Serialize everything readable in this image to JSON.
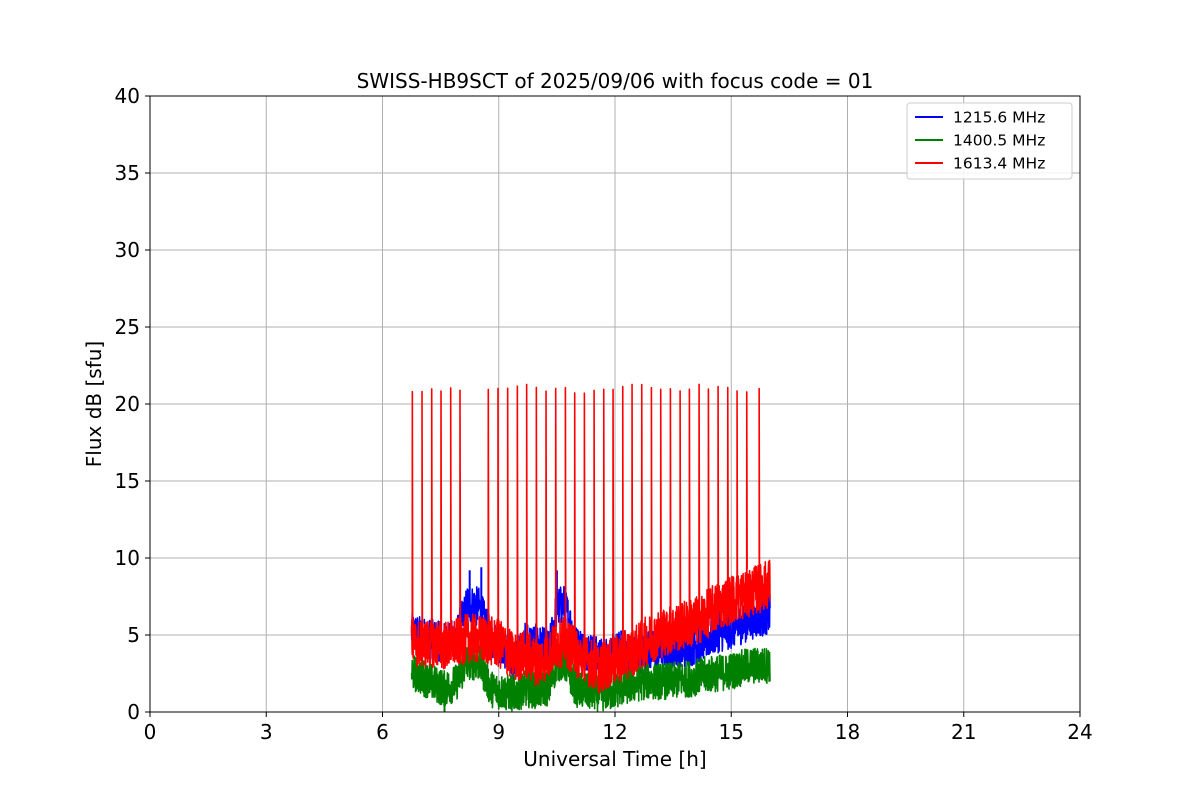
{
  "chart_data": {
    "type": "line",
    "title": "SWISS-HB9SCT of 2025/09/06 with focus code = 01",
    "xlabel": "Universal Time [h]",
    "ylabel": "Flux dB [sfu]",
    "xlim": [
      0,
      24
    ],
    "ylim": [
      0,
      40
    ],
    "xticks": [
      0,
      3,
      6,
      9,
      12,
      15,
      18,
      21,
      24
    ],
    "yticks": [
      0,
      5,
      10,
      15,
      20,
      25,
      30,
      35,
      40
    ],
    "grid": true,
    "legend_position": "top-right",
    "series": [
      {
        "name": "1215.6 MHz",
        "color": "#0000ff",
        "points": [
          [
            6.75,
            5.2
          ],
          [
            7.0,
            4.9
          ],
          [
            7.3,
            4.7
          ],
          [
            7.6,
            4.5
          ],
          [
            7.9,
            4.8
          ],
          [
            8.2,
            7.0
          ],
          [
            8.5,
            6.8
          ],
          [
            8.8,
            4.7
          ],
          [
            9.1,
            4.3
          ],
          [
            9.4,
            3.2
          ],
          [
            9.7,
            4.6
          ],
          [
            10.0,
            4.4
          ],
          [
            10.3,
            4.0
          ],
          [
            10.5,
            6.8
          ],
          [
            10.7,
            7.0
          ],
          [
            11.0,
            4.3
          ],
          [
            11.3,
            4.0
          ],
          [
            11.6,
            3.5
          ],
          [
            11.9,
            3.7
          ],
          [
            12.2,
            4.1
          ],
          [
            12.5,
            3.7
          ],
          [
            12.8,
            4.0
          ],
          [
            13.1,
            4.0
          ],
          [
            13.4,
            4.2
          ],
          [
            13.7,
            4.1
          ],
          [
            14.0,
            4.3
          ],
          [
            14.3,
            4.6
          ],
          [
            14.6,
            5.1
          ],
          [
            14.9,
            5.3
          ],
          [
            15.2,
            5.6
          ],
          [
            15.5,
            6.0
          ],
          [
            15.8,
            6.2
          ],
          [
            16.0,
            6.4
          ]
        ],
        "peaks": [
          [
            8.25,
            9.2
          ],
          [
            8.55,
            9.4
          ],
          [
            10.5,
            9.2
          ],
          [
            14.7,
            6.8
          ]
        ]
      },
      {
        "name": "1400.5 MHz",
        "color": "#008000",
        "points": [
          [
            6.75,
            2.6
          ],
          [
            7.0,
            2.3
          ],
          [
            7.3,
            1.9
          ],
          [
            7.6,
            1.5
          ],
          [
            7.9,
            1.9
          ],
          [
            8.2,
            3.3
          ],
          [
            8.5,
            3.2
          ],
          [
            8.8,
            1.5
          ],
          [
            9.1,
            1.3
          ],
          [
            9.4,
            1.2
          ],
          [
            9.7,
            1.5
          ],
          [
            10.0,
            1.4
          ],
          [
            10.3,
            1.6
          ],
          [
            10.5,
            3.2
          ],
          [
            10.7,
            3.2
          ],
          [
            11.0,
            1.5
          ],
          [
            11.3,
            1.3
          ],
          [
            11.6,
            1.2
          ],
          [
            11.9,
            1.3
          ],
          [
            12.2,
            1.6
          ],
          [
            12.5,
            1.8
          ],
          [
            12.8,
            2.0
          ],
          [
            13.1,
            2.0
          ],
          [
            13.4,
            2.0
          ],
          [
            13.7,
            2.1
          ],
          [
            14.0,
            2.2
          ],
          [
            14.3,
            2.4
          ],
          [
            14.6,
            2.5
          ],
          [
            14.9,
            2.6
          ],
          [
            15.2,
            2.8
          ],
          [
            15.5,
            3.0
          ],
          [
            15.8,
            3.0
          ],
          [
            16.0,
            3.1
          ]
        ],
        "peaks": [
          [
            7.6,
            0.0
          ],
          [
            9.4,
            0.2
          ]
        ]
      },
      {
        "name": "1613.4 MHz",
        "color": "#ff0000",
        "points": [
          [
            6.75,
            4.5
          ],
          [
            7.0,
            4.4
          ],
          [
            7.3,
            4.5
          ],
          [
            7.6,
            4.3
          ],
          [
            7.9,
            4.5
          ],
          [
            8.2,
            4.8
          ],
          [
            8.5,
            4.7
          ],
          [
            8.8,
            4.6
          ],
          [
            9.1,
            4.3
          ],
          [
            9.4,
            3.5
          ],
          [
            9.7,
            3.8
          ],
          [
            10.0,
            3.2
          ],
          [
            10.3,
            3.8
          ],
          [
            10.5,
            4.4
          ],
          [
            10.7,
            4.6
          ],
          [
            11.0,
            3.8
          ],
          [
            11.3,
            3.3
          ],
          [
            11.6,
            2.8
          ],
          [
            11.9,
            3.2
          ],
          [
            12.2,
            3.6
          ],
          [
            12.5,
            4.0
          ],
          [
            12.8,
            4.6
          ],
          [
            13.1,
            5.0
          ],
          [
            13.4,
            5.3
          ],
          [
            13.7,
            5.6
          ],
          [
            14.0,
            5.8
          ],
          [
            14.3,
            6.2
          ],
          [
            14.6,
            6.8
          ],
          [
            14.9,
            7.2
          ],
          [
            15.2,
            7.5
          ],
          [
            15.5,
            7.8
          ],
          [
            15.8,
            8.1
          ],
          [
            16.0,
            8.4
          ]
        ],
        "spikes": [
          6.77,
          7.02,
          7.27,
          7.51,
          7.76,
          8.0,
          8.73,
          8.98,
          9.23,
          9.48,
          9.72,
          9.97,
          10.22,
          10.47,
          10.72,
          10.96,
          11.21,
          11.46,
          11.71,
          11.95,
          12.2,
          12.44,
          12.69,
          12.94,
          13.18,
          13.43,
          13.68,
          13.92,
          14.17,
          14.41,
          14.66,
          14.91,
          15.15,
          15.4,
          15.72
        ],
        "spike_peak": 21.0
      }
    ]
  }
}
